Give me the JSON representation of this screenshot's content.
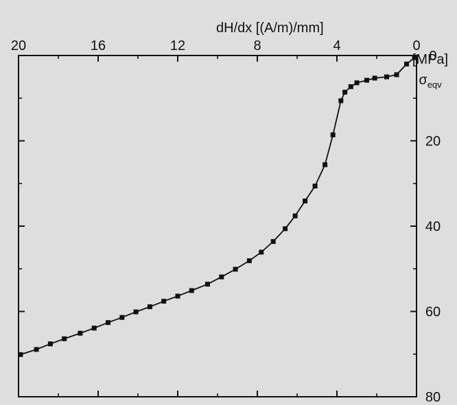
{
  "chart_data": {
    "type": "line",
    "orientation": "rotated-180",
    "title": "",
    "xlabel": "dH/dx [(A/m)/mm]",
    "ylabel": "σeqv [MPa]",
    "ylabel_main": "σ",
    "ylabel_sub": "eqv",
    "ylabel_unit": "[MPa]",
    "xlim": [
      0,
      20
    ],
    "ylim": [
      0,
      80
    ],
    "x_ticks": [
      0,
      4,
      8,
      12,
      16,
      20
    ],
    "y_ticks": [
      0,
      20,
      40,
      60,
      80
    ],
    "x_tick_labels": [
      "0",
      "4",
      "8",
      "12",
      "16",
      "20"
    ],
    "y_tick_labels": [
      "0",
      "20",
      "40",
      "60",
      "80"
    ],
    "grid": false,
    "legend": "none",
    "marker": "square",
    "line_color": "#111111",
    "series": [
      {
        "points": [
          [
            0.1,
            0.5
          ],
          [
            0.5,
            2.0
          ],
          [
            1.0,
            4.5
          ],
          [
            1.5,
            5.0
          ],
          [
            2.1,
            5.3
          ],
          [
            2.5,
            5.8
          ],
          [
            3.0,
            6.4
          ],
          [
            3.3,
            7.3
          ],
          [
            3.6,
            8.6
          ],
          [
            3.8,
            10.6
          ],
          [
            4.2,
            18.6
          ],
          [
            4.6,
            25.6
          ],
          [
            5.1,
            30.6
          ],
          [
            5.6,
            34.1
          ],
          [
            6.1,
            37.6
          ],
          [
            6.6,
            40.6
          ],
          [
            7.2,
            43.6
          ],
          [
            7.8,
            46.1
          ],
          [
            8.4,
            48.1
          ],
          [
            9.1,
            50.1
          ],
          [
            9.8,
            51.9
          ],
          [
            10.5,
            53.6
          ],
          [
            11.3,
            55.1
          ],
          [
            12.0,
            56.4
          ],
          [
            12.7,
            57.6
          ],
          [
            13.4,
            58.9
          ],
          [
            14.1,
            60.1
          ],
          [
            14.8,
            61.4
          ],
          [
            15.5,
            62.6
          ],
          [
            16.2,
            63.9
          ],
          [
            16.9,
            65.1
          ],
          [
            17.7,
            66.4
          ],
          [
            18.4,
            67.6
          ],
          [
            19.1,
            68.9
          ],
          [
            19.9,
            70.1
          ]
        ]
      }
    ]
  }
}
